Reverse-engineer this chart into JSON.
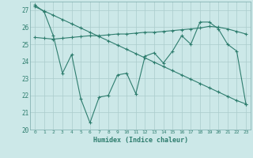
{
  "xlabel": "Humidex (Indice chaleur)",
  "background_color": "#cce8e8",
  "line_color": "#2e7d6e",
  "grid_color": "#aacccc",
  "spine_color": "#7aaaaa",
  "xlim": [
    -0.5,
    23.5
  ],
  "ylim": [
    20.0,
    27.5
  ],
  "yticks": [
    20,
    21,
    22,
    23,
    24,
    25,
    26,
    27
  ],
  "xticks": [
    0,
    1,
    2,
    3,
    4,
    5,
    6,
    7,
    8,
    9,
    10,
    11,
    12,
    13,
    14,
    15,
    16,
    17,
    18,
    19,
    20,
    21,
    22,
    23
  ],
  "series1": [
    27.3,
    26.9,
    25.5,
    23.3,
    24.4,
    21.8,
    20.4,
    21.9,
    22.0,
    23.2,
    23.3,
    22.1,
    24.3,
    24.5,
    23.9,
    24.6,
    25.5,
    25.0,
    26.3,
    26.3,
    25.9,
    25.0,
    24.6,
    21.5
  ],
  "series2": [
    25.4,
    25.35,
    25.3,
    25.35,
    25.4,
    25.45,
    25.5,
    25.5,
    25.55,
    25.6,
    25.6,
    25.65,
    25.7,
    25.7,
    25.75,
    25.8,
    25.85,
    25.9,
    25.95,
    26.05,
    26.0,
    25.9,
    25.75,
    25.6
  ],
  "series3": [
    27.2,
    26.95,
    26.7,
    26.45,
    26.2,
    25.95,
    25.7,
    25.45,
    25.2,
    24.95,
    24.7,
    24.45,
    24.2,
    23.95,
    23.7,
    23.45,
    23.2,
    22.95,
    22.7,
    22.45,
    22.2,
    21.95,
    21.7,
    21.5
  ]
}
